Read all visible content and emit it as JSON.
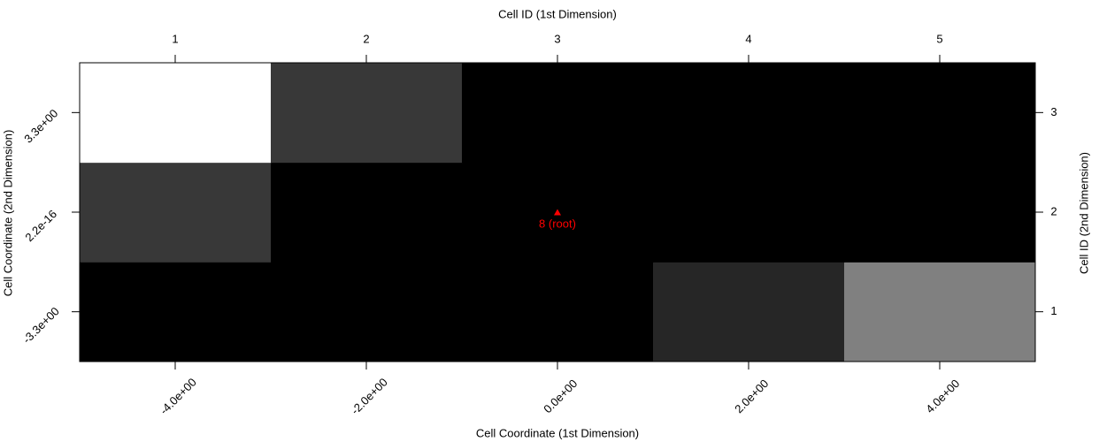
{
  "chart_data": {
    "type": "heatmap",
    "x_label": "Cell Coordinate (1st Dimension)",
    "x2_label": "Cell ID (1st Dimension)",
    "y_label": "Cell Coordinate (2nd Dimension)",
    "y2_label": "Cell ID (2nd Dimension)",
    "x_categories": [
      "-4.0e+00",
      "-2.0e+00",
      "0.0e+00",
      "2.0e+00",
      "4.0e+00"
    ],
    "x2_categories": [
      1,
      2,
      3,
      4,
      5
    ],
    "y_categories": [
      "-3.3e+00",
      "2.2e-16",
      "3.3e+00"
    ],
    "y2_categories": [
      1,
      2,
      3
    ],
    "values": [
      [
        0,
        0,
        0,
        0.15,
        0.5
      ],
      [
        0.22,
        0,
        0,
        0,
        0
      ],
      [
        1,
        0.22,
        0,
        0,
        0
      ]
    ],
    "zlim": [
      0,
      1
    ],
    "low_color": "#000000",
    "high_color": "#ffffff",
    "annotations": [
      {
        "text": "8 (root)",
        "x": 3,
        "y": 2,
        "color": "#ff0000"
      }
    ]
  }
}
